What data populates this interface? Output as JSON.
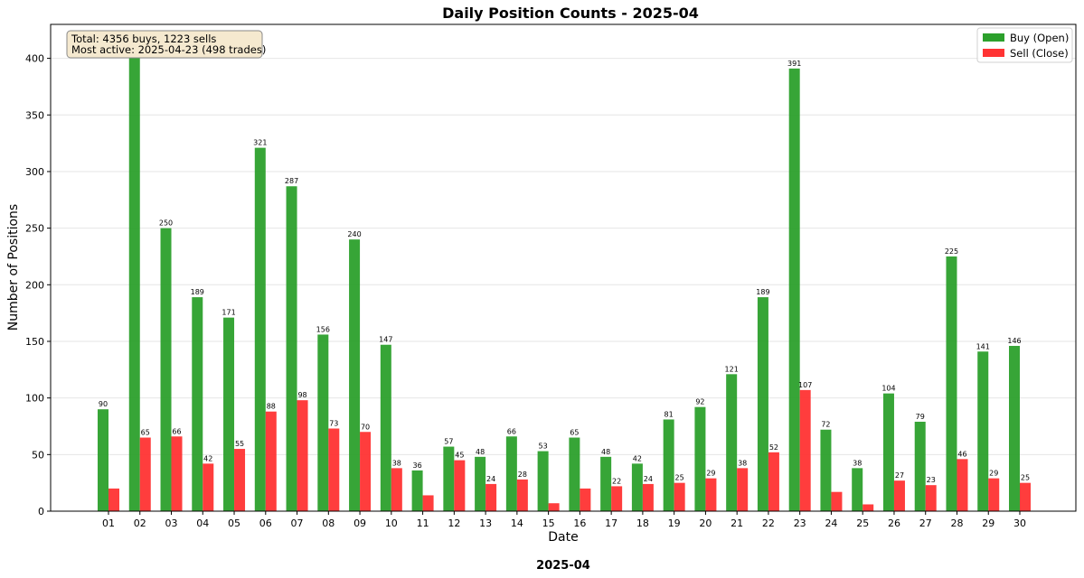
{
  "chart_data": {
    "type": "bar",
    "title": "Daily Position Counts - 2025-04",
    "xlabel": "Date",
    "ylabel": "Number of Positions",
    "footer": "2025-04",
    "ylim": [
      0,
      430
    ],
    "yticks": [
      0,
      50,
      100,
      150,
      200,
      250,
      300,
      350,
      400
    ],
    "grid": "horizontal",
    "legend_position": "top-right",
    "categories": [
      "01",
      "02",
      "03",
      "04",
      "05",
      "06",
      "07",
      "08",
      "09",
      "10",
      "11",
      "12",
      "13",
      "14",
      "15",
      "16",
      "17",
      "18",
      "19",
      "20",
      "21",
      "22",
      "23",
      "24",
      "25",
      "26",
      "27",
      "28",
      "29",
      "30"
    ],
    "series": [
      {
        "name": "Buy (Open)",
        "color": "#2ca02c",
        "values": [
          90,
          410,
          250,
          189,
          171,
          321,
          287,
          156,
          240,
          147,
          36,
          57,
          48,
          66,
          53,
          65,
          48,
          42,
          81,
          92,
          121,
          189,
          391,
          72,
          38,
          104,
          79,
          225,
          141,
          146
        ],
        "labels": [
          "90",
          "",
          "250",
          "189",
          "171",
          "321",
          "287",
          "156",
          "240",
          "147",
          "36",
          "57",
          "48",
          "66",
          "53",
          "65",
          "48",
          "42",
          "81",
          "92",
          "121",
          "189",
          "391",
          "72",
          "38",
          "104",
          "79",
          "225",
          "141",
          "146"
        ]
      },
      {
        "name": "Sell (Close)",
        "color": "#ff3333",
        "values": [
          20,
          65,
          66,
          42,
          55,
          88,
          98,
          73,
          70,
          38,
          14,
          45,
          24,
          28,
          7,
          20,
          22,
          24,
          25,
          29,
          38,
          52,
          107,
          17,
          6,
          27,
          23,
          46,
          29,
          25
        ],
        "labels": [
          "",
          "65",
          "66",
          "42",
          "55",
          "88",
          "98",
          "73",
          "70",
          "38",
          "",
          "45",
          "24",
          "28",
          "",
          "",
          "22",
          "24",
          "25",
          "29",
          "38",
          "52",
          "107",
          "",
          "",
          "27",
          "23",
          "46",
          "29",
          "25"
        ]
      }
    ],
    "annotation": {
      "line1": "Total: 4356 buys, 1223 sells",
      "line2": "Most active: 2025-04-23 (498 trades)"
    }
  }
}
